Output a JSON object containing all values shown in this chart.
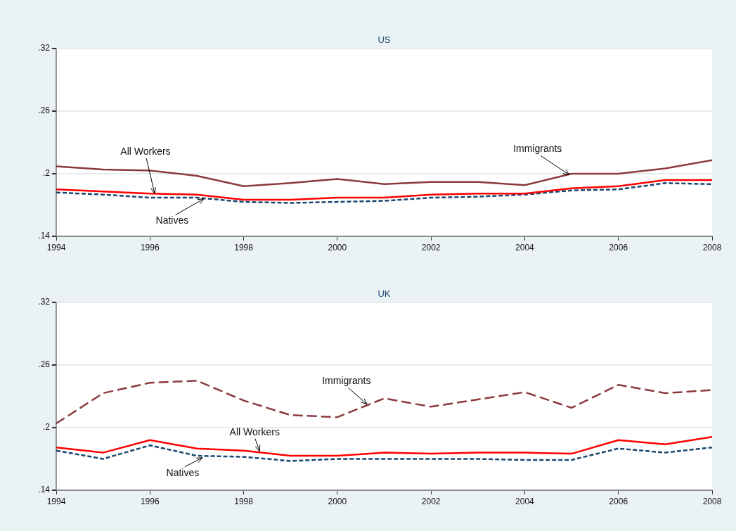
{
  "chart_data": [
    {
      "type": "line",
      "title": "US",
      "xlim": [
        1994,
        2008
      ],
      "xticks": [
        1994,
        1996,
        1998,
        2000,
        2002,
        2004,
        2006,
        2008
      ],
      "ylim": [
        0.14,
        0.32
      ],
      "yticks": [
        {
          "value": 0.14,
          "label": ".14"
        },
        {
          "value": 0.2,
          "label": ".2"
        },
        {
          "value": 0.26,
          "label": ".26"
        },
        {
          "value": 0.32,
          "label": ".32"
        }
      ],
      "grid": "y",
      "marker": "none",
      "x": [
        1994,
        1995,
        1996,
        1997,
        1998,
        1999,
        2000,
        2001,
        2002,
        2003,
        2004,
        2005,
        2006,
        2007,
        2008
      ],
      "series": [
        {
          "color": "#8b3a3e",
          "line_style": "solid",
          "values": [
            0.207,
            0.204,
            0.203,
            0.198,
            0.188,
            0.191,
            0.195,
            0.19,
            0.192,
            0.192,
            0.189,
            0.2,
            0.2,
            0.205,
            0.213
          ]
        },
        {
          "color": "#ff0000",
          "line_style": "solid",
          "values": [
            0.185,
            0.183,
            0.181,
            0.18,
            0.175,
            0.175,
            0.177,
            0.177,
            0.18,
            0.181,
            0.181,
            0.186,
            0.188,
            0.194,
            0.194
          ]
        },
        {
          "color": "#1a476f",
          "line_style": "dashed",
          "values": [
            0.182,
            0.18,
            0.177,
            0.177,
            0.173,
            0.172,
            0.173,
            0.174,
            0.177,
            0.178,
            0.18,
            0.184,
            0.185,
            0.191,
            0.19
          ]
        }
      ],
      "annotations": [
        {
          "text": "All Workers",
          "x": 1996.1,
          "y": 0.181
        },
        {
          "text": "Natives",
          "x": 1997.15,
          "y": 0.176
        },
        {
          "text": "Immigrants",
          "x": 2004.95,
          "y": 0.199
        }
      ]
    },
    {
      "type": "line",
      "title": "UK",
      "xlim": [
        1994,
        2008
      ],
      "xticks": [
        1994,
        1996,
        1998,
        2000,
        2002,
        2004,
        2006,
        2008
      ],
      "ylim": [
        0.14,
        0.32
      ],
      "yticks": [
        {
          "value": 0.14,
          "label": ".14"
        },
        {
          "value": 0.2,
          "label": ".2"
        },
        {
          "value": 0.26,
          "label": ".26"
        },
        {
          "value": 0.32,
          "label": ".32"
        }
      ],
      "grid": "y",
      "marker": "none",
      "x": [
        1994,
        1995,
        1996,
        1997,
        1998,
        1999,
        2000,
        2001,
        2002,
        2003,
        2004,
        2005,
        2006,
        2007,
        2008
      ],
      "series": [
        {
          "color": "#8b3a3e",
          "line_style": "dashed",
          "values": [
            0.204,
            0.233,
            0.243,
            0.245,
            0.226,
            0.212,
            0.21,
            0.228,
            0.22,
            0.227,
            0.234,
            0.219,
            0.241,
            0.233,
            0.236
          ]
        },
        {
          "color": "#ff0000",
          "line_style": "solid",
          "values": [
            0.181,
            0.176,
            0.188,
            0.18,
            0.178,
            0.173,
            0.173,
            0.176,
            0.175,
            0.176,
            0.176,
            0.175,
            0.188,
            0.184,
            0.191
          ]
        },
        {
          "color": "#1a476f",
          "line_style": "dashed",
          "values": [
            0.178,
            0.17,
            0.183,
            0.173,
            0.172,
            0.168,
            0.17,
            0.17,
            0.17,
            0.17,
            0.169,
            0.169,
            0.18,
            0.176,
            0.181
          ]
        }
      ],
      "annotations": [
        {
          "text": "Immigrants",
          "x": 2000.63,
          "y": 0.2225
        },
        {
          "text": "All Workers",
          "x": 1998.34,
          "y": 0.1773
        },
        {
          "text": "Natives",
          "x": 1997.12,
          "y": 0.1712
        }
      ]
    }
  ]
}
